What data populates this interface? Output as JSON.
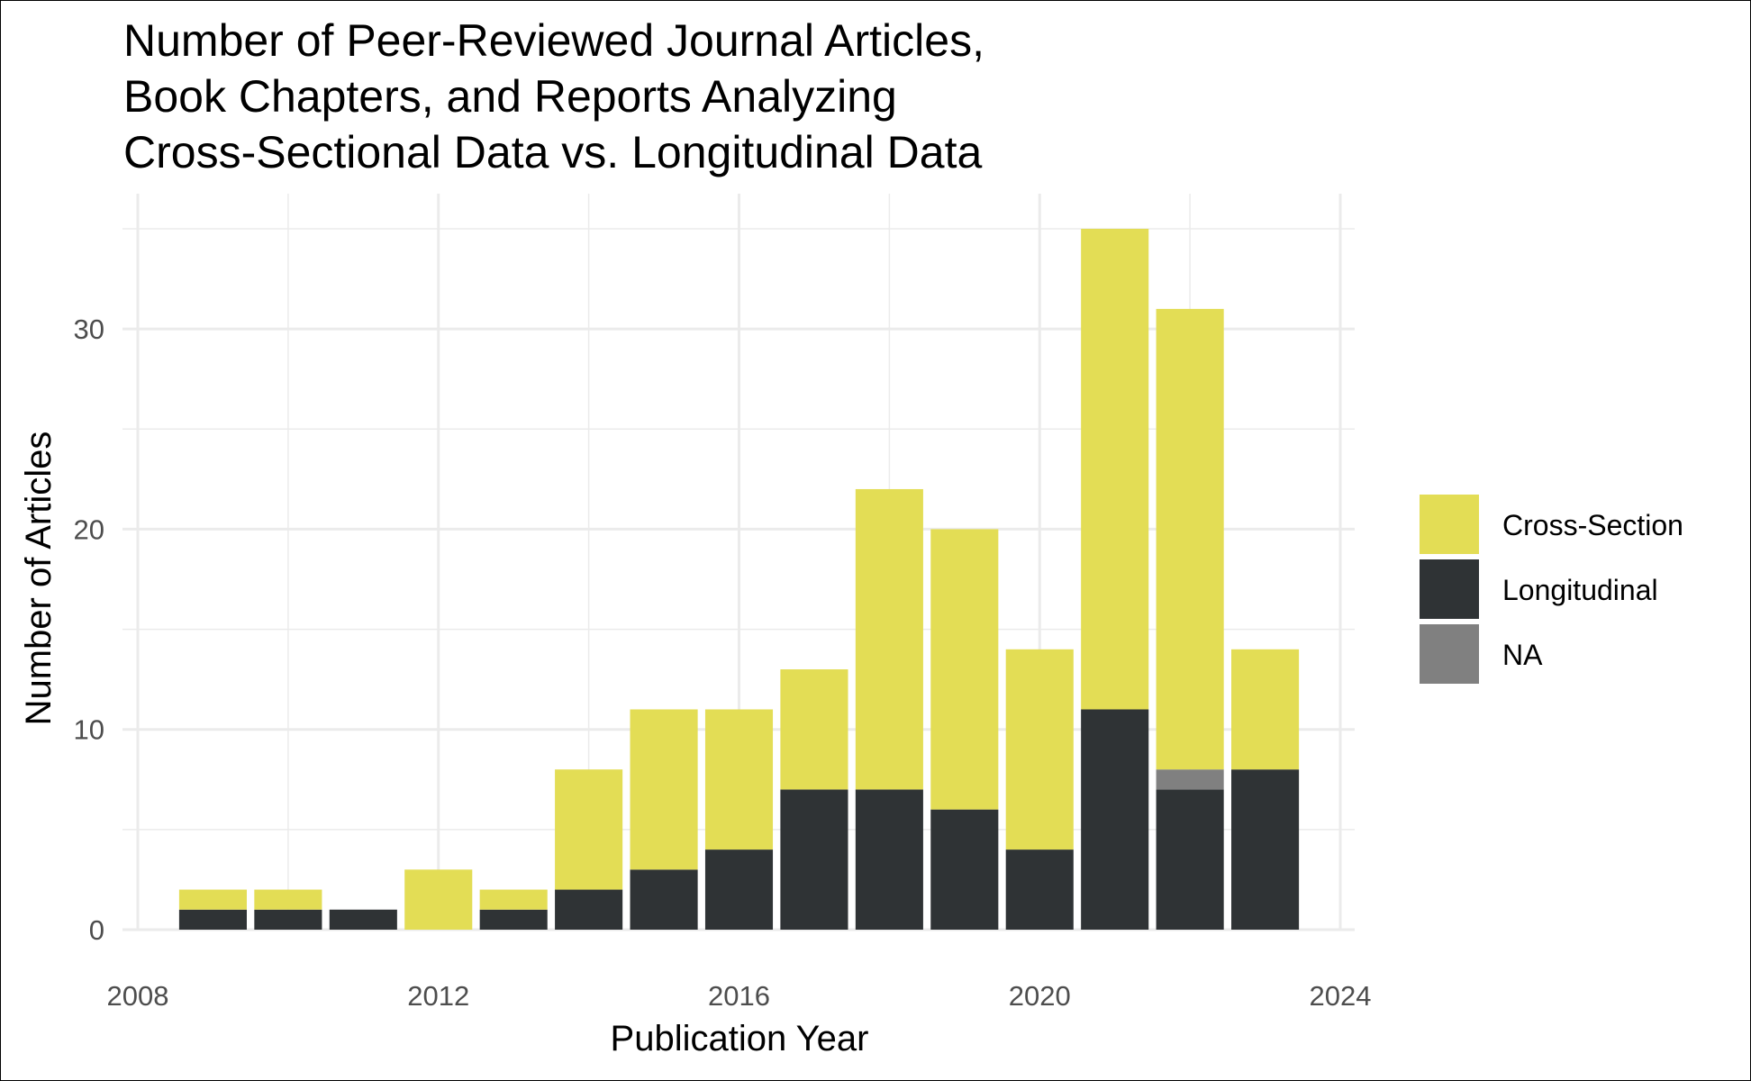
{
  "chart_data": {
    "type": "bar",
    "stacked": true,
    "title_lines": [
      "Number of Peer-Reviewed Journal Articles,",
      "Book Chapters, and Reports Analyzing",
      "Cross-Sectional Data vs. Longitudinal Data"
    ],
    "xlabel": "Publication Year",
    "ylabel": "Number of Articles",
    "x": [
      2009,
      2010,
      2011,
      2012,
      2013,
      2014,
      2015,
      2016,
      2017,
      2018,
      2019,
      2020,
      2021,
      2022,
      2023
    ],
    "series": [
      {
        "name": "Longitudinal",
        "color": "#2f3335",
        "values": [
          1,
          1,
          1,
          0,
          1,
          2,
          3,
          4,
          7,
          7,
          6,
          4,
          11,
          7,
          8
        ]
      },
      {
        "name": "NA",
        "color": "#808080",
        "values": [
          0,
          0,
          0,
          0,
          0,
          0,
          0,
          0,
          0,
          0,
          0,
          0,
          0,
          1,
          0
        ]
      },
      {
        "name": "Cross-Section",
        "color": "#e3dd55",
        "values": [
          1,
          1,
          0,
          3,
          1,
          6,
          8,
          7,
          6,
          15,
          14,
          10,
          24,
          23,
          6
        ]
      }
    ],
    "legend_order": [
      "Cross-Section",
      "Longitudinal",
      "NA"
    ],
    "xlim": [
      2008,
      2024
    ],
    "ylim": [
      0,
      35
    ],
    "x_ticks": [
      2008,
      2012,
      2016,
      2020,
      2024
    ],
    "y_ticks": [
      0,
      10,
      20,
      30
    ],
    "grid": true,
    "legend_position": "right"
  }
}
